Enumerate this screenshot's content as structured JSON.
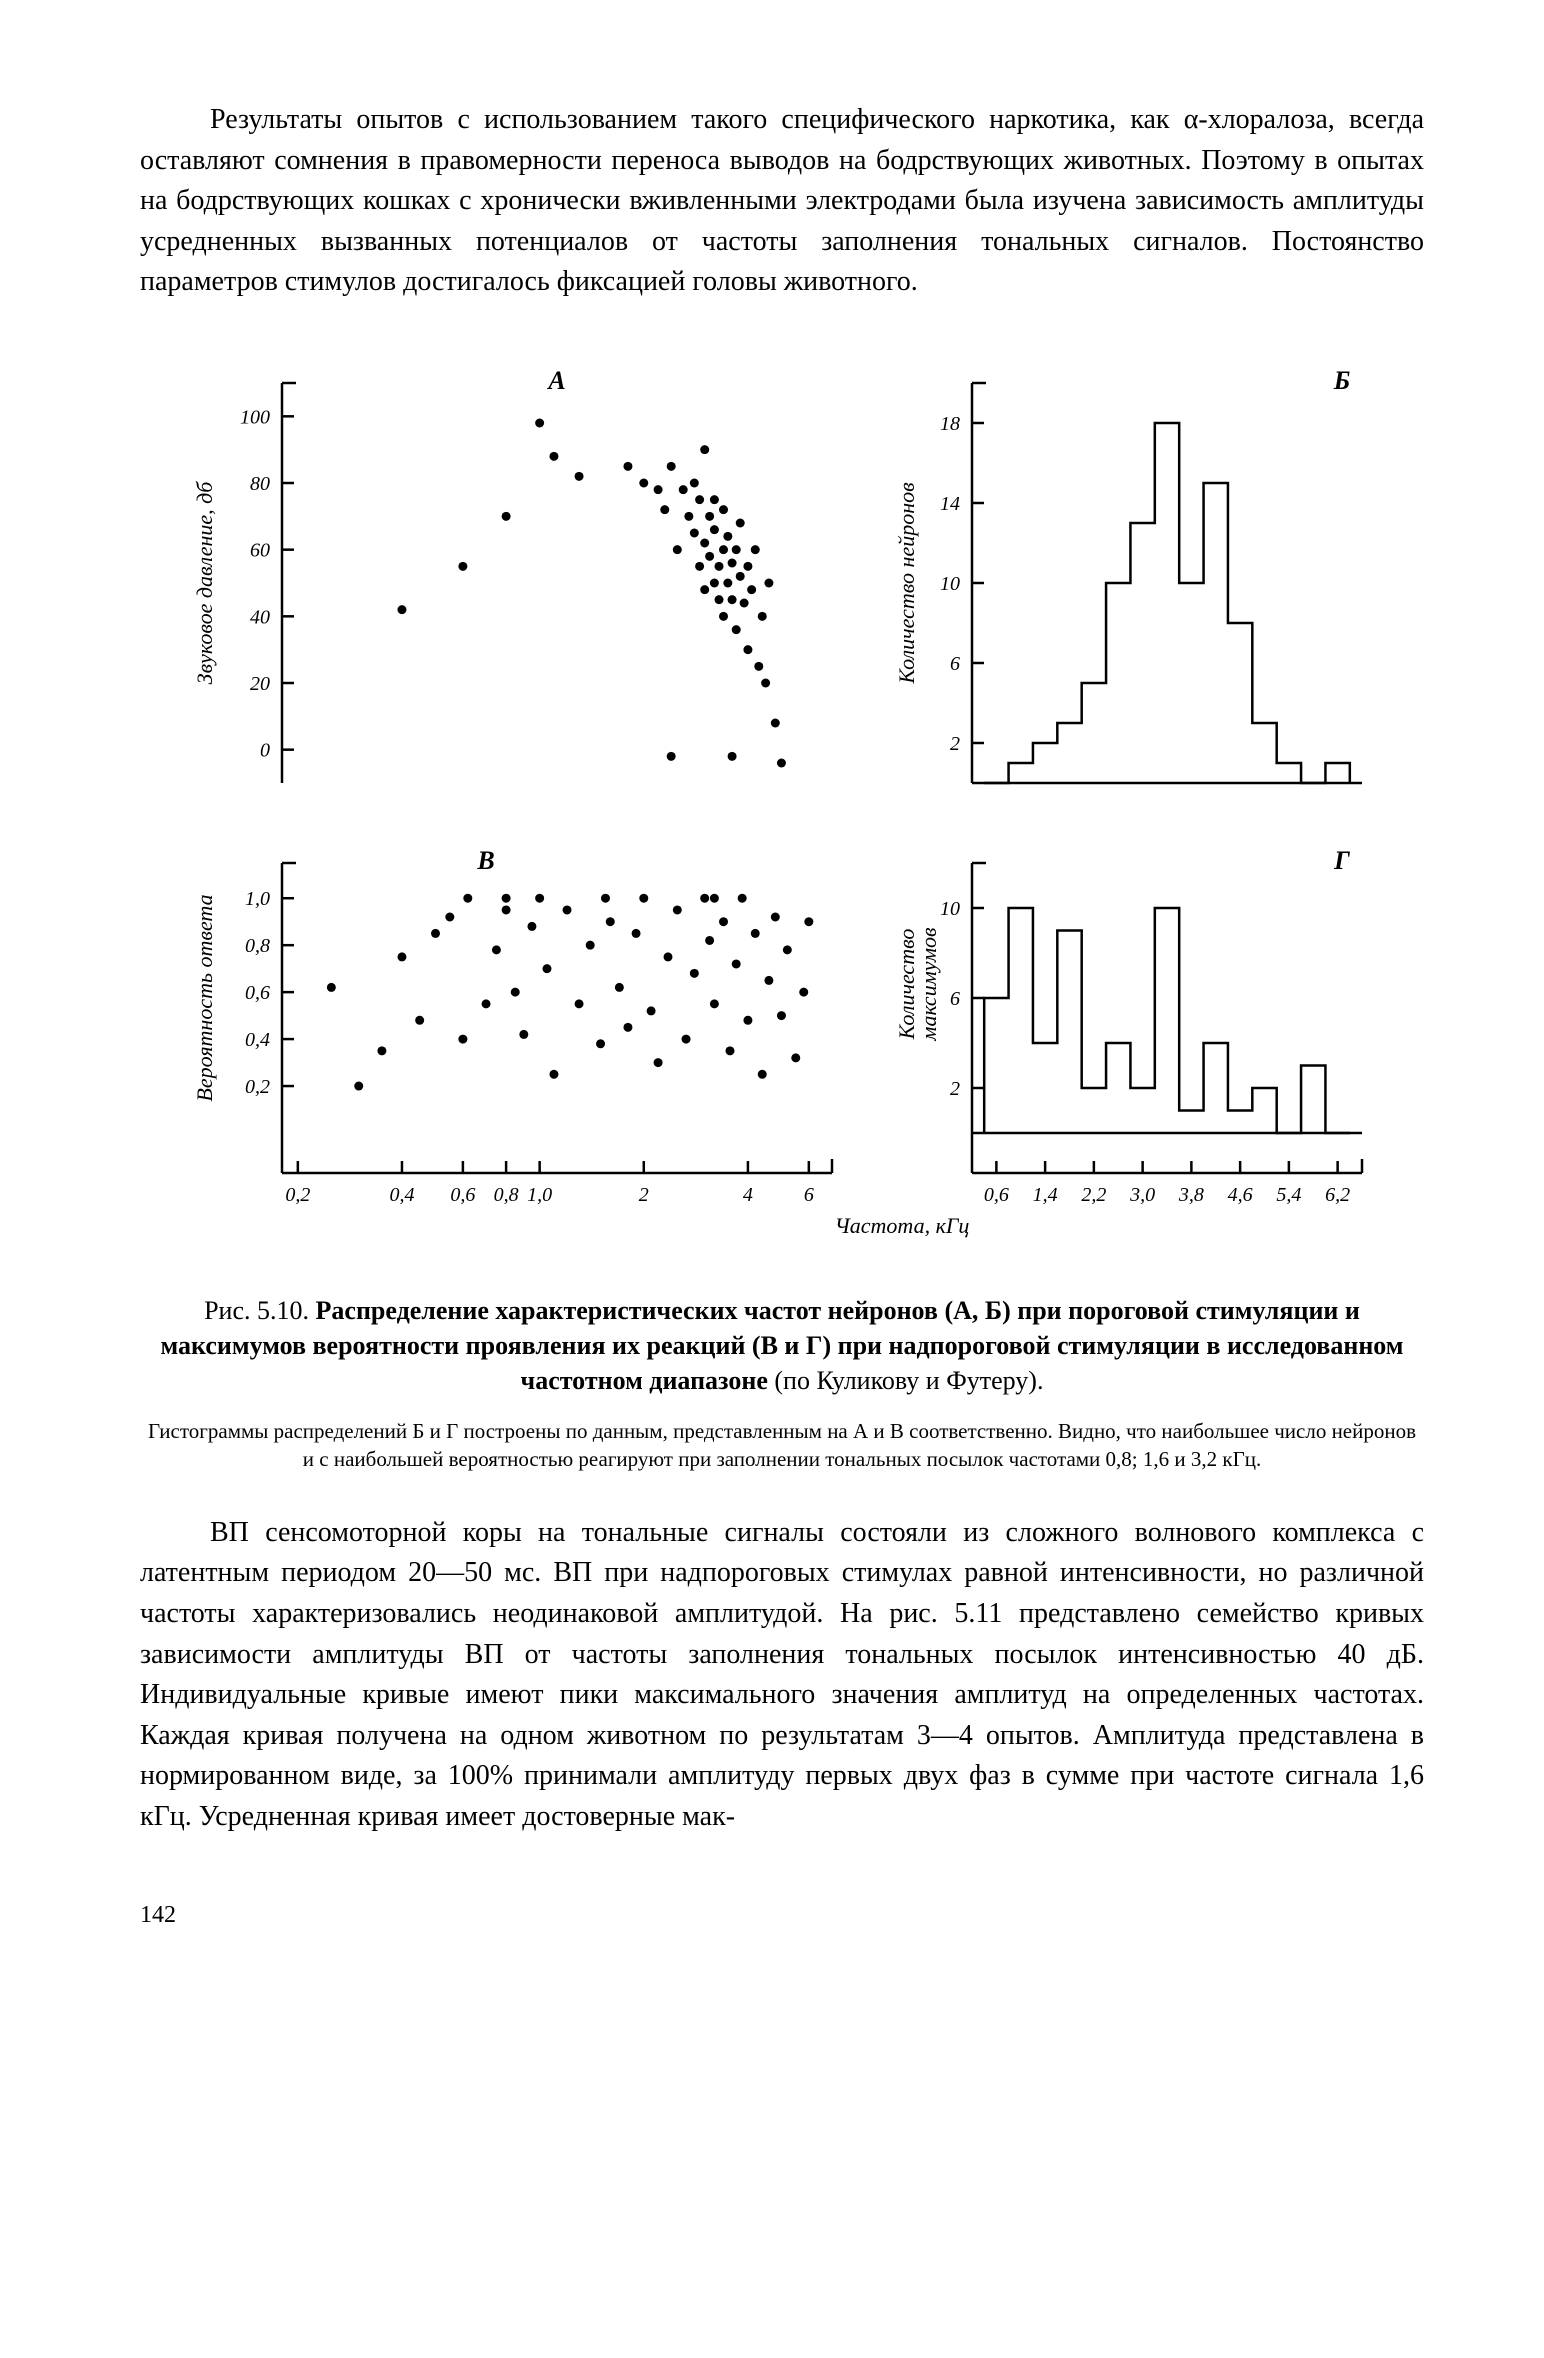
{
  "text": {
    "para1": "Результаты опытов с использованием такого специфического наркотика, как α-хлоралоза, всегда оставляют сомнения в правомерности переноса выводов на бодрствующих животных. Поэтому в опытах на бодрствующих кошках с хронически вживленными электродами была изучена зависимость амплитуды усредненных вызванных потенциалов от частоты заполнения тональных сигналов. Постоянство параметров стимулов достигалось фиксацией головы животного.",
    "caption_lead": "Рис. 5.10. ",
    "caption_bold": "Распределение характеристических частот нейронов (А, Б) при пороговой стимуляции и максимумов вероятности проявления их реакций (В и Г) при надпороговой стимуляции в исследованном частотном диапазоне",
    "caption_tail": " (по Куликову и Футеру).",
    "subcaption": "Гистограммы распределений Б и Г построены по данным, представленным на А и В соответственно. Видно, что наибольшее число нейронов и с наибольшей вероятностью реагируют при заполнении тональных посылок частотами 0,8; 1,6 и 3,2 кГц.",
    "para2": "ВП сенсомоторной коры на тональные сигналы состояли из сложного волнового комплекса с латентным периодом 20—50 мс. ВП при надпороговых стимулах равной интенсивности, но различной частоты характеризовались неодинаковой амплитудой. На рис. 5.11 представлено семейство кривых зависимости амплитуды ВП от частоты заполнения тональных посылок интенсивностью 40 дБ. Индивидуальные кривые имеют пики максимального значения амплитуд на определенных частотах. Каждая кривая получена на одном животном по результатам 3—4 опытов. Амплитуда представлена в нормированном виде, за 100% принимали амплитуду первых двух фаз в сумме при частоте сигнала 1,6 кГц. Усредненная кривая имеет достоверные мак-",
    "pagenum": "142"
  },
  "figure": {
    "colors": {
      "stroke": "#000000",
      "fill": "#ffffff",
      "point": "#000000"
    },
    "stroke_width": 2.5,
    "point_radius": 4.5,
    "x_axis_label": "Частота, кГц",
    "panelA": {
      "label": "А",
      "y_label": "Звуковое давление, дб",
      "y_ticks": [
        0,
        20,
        40,
        60,
        80,
        100
      ],
      "ylim": [
        -10,
        110
      ],
      "x_log_ticks": [
        0.2,
        0.4,
        0.6,
        0.8,
        1.0,
        2,
        4,
        6
      ],
      "x_tick_labels": [
        "0,2",
        "0,4",
        "0,6",
        "0,8",
        "1,0",
        "2",
        "4",
        "6"
      ],
      "xlim_log": [
        0.18,
        7.0
      ],
      "points": [
        [
          1.0,
          98
        ],
        [
          1.1,
          88
        ],
        [
          1.3,
          82
        ],
        [
          1.8,
          85
        ],
        [
          2.0,
          80
        ],
        [
          2.2,
          78
        ],
        [
          2.3,
          72
        ],
        [
          2.4,
          85
        ],
        [
          2.5,
          60
        ],
        [
          2.6,
          78
        ],
        [
          2.7,
          70
        ],
        [
          2.8,
          65
        ],
        [
          2.8,
          80
        ],
        [
          2.9,
          55
        ],
        [
          2.9,
          75
        ],
        [
          3.0,
          62
        ],
        [
          3.0,
          48
        ],
        [
          3.0,
          90
        ],
        [
          3.1,
          70
        ],
        [
          3.1,
          58
        ],
        [
          3.2,
          50
        ],
        [
          3.2,
          66
        ],
        [
          3.2,
          75
        ],
        [
          3.3,
          55
        ],
        [
          3.3,
          45
        ],
        [
          3.4,
          60
        ],
        [
          3.4,
          72
        ],
        [
          3.4,
          40
        ],
        [
          3.5,
          50
        ],
        [
          3.5,
          64
        ],
        [
          3.6,
          56
        ],
        [
          3.6,
          45
        ],
        [
          3.7,
          60
        ],
        [
          3.7,
          36
        ],
        [
          3.8,
          52
        ],
        [
          3.8,
          68
        ],
        [
          3.9,
          44
        ],
        [
          4.0,
          55
        ],
        [
          4.0,
          30
        ],
        [
          4.1,
          48
        ],
        [
          4.2,
          60
        ],
        [
          4.3,
          25
        ],
        [
          4.4,
          40
        ],
        [
          4.5,
          20
        ],
        [
          4.8,
          8
        ],
        [
          5.0,
          -4
        ],
        [
          4.6,
          50
        ],
        [
          0.4,
          42
        ],
        [
          0.6,
          55
        ],
        [
          0.8,
          70
        ],
        [
          2.4,
          -2
        ],
        [
          3.6,
          -2
        ]
      ]
    },
    "panelB": {
      "label": "В",
      "y_label": "Вероятность ответа",
      "y_ticks": [
        0.2,
        0.4,
        0.6,
        0.8,
        1.0
      ],
      "y_tick_labels": [
        "0,2",
        "0,4",
        "0,6",
        "0,8",
        "1,0"
      ],
      "ylim": [
        0,
        1.15
      ],
      "points": [
        [
          0.25,
          0.62
        ],
        [
          0.3,
          0.2
        ],
        [
          0.35,
          0.35
        ],
        [
          0.4,
          0.75
        ],
        [
          0.45,
          0.48
        ],
        [
          0.5,
          0.85
        ],
        [
          0.55,
          0.92
        ],
        [
          0.6,
          0.4
        ],
        [
          0.62,
          1.0
        ],
        [
          0.7,
          0.55
        ],
        [
          0.75,
          0.78
        ],
        [
          0.8,
          0.95
        ],
        [
          0.8,
          1.0
        ],
        [
          0.85,
          0.6
        ],
        [
          0.9,
          0.42
        ],
        [
          0.95,
          0.88
        ],
        [
          1.0,
          1.0
        ],
        [
          1.05,
          0.7
        ],
        [
          1.1,
          0.25
        ],
        [
          1.2,
          0.95
        ],
        [
          1.3,
          0.55
        ],
        [
          1.4,
          0.8
        ],
        [
          1.5,
          0.38
        ],
        [
          1.55,
          1.0
        ],
        [
          1.6,
          0.9
        ],
        [
          1.7,
          0.62
        ],
        [
          1.8,
          0.45
        ],
        [
          1.9,
          0.85
        ],
        [
          2.0,
          1.0
        ],
        [
          2.1,
          0.52
        ],
        [
          2.2,
          0.3
        ],
        [
          2.35,
          0.75
        ],
        [
          2.5,
          0.95
        ],
        [
          2.65,
          0.4
        ],
        [
          2.8,
          0.68
        ],
        [
          3.0,
          1.0
        ],
        [
          3.1,
          0.82
        ],
        [
          3.2,
          0.55
        ],
        [
          3.2,
          1.0
        ],
        [
          3.4,
          0.9
        ],
        [
          3.55,
          0.35
        ],
        [
          3.7,
          0.72
        ],
        [
          3.85,
          1.0
        ],
        [
          4.0,
          0.48
        ],
        [
          4.2,
          0.85
        ],
        [
          4.4,
          0.25
        ],
        [
          4.6,
          0.65
        ],
        [
          4.8,
          0.92
        ],
        [
          5.0,
          0.5
        ],
        [
          5.2,
          0.78
        ],
        [
          5.5,
          0.32
        ],
        [
          5.8,
          0.6
        ],
        [
          6.0,
          0.9
        ]
      ]
    },
    "panelC": {
      "label": "Б",
      "y_label": "Количество нейронов",
      "y_ticks": [
        2,
        6,
        10,
        14,
        18
      ],
      "ylim": [
        0,
        20
      ],
      "x_ticks": [
        0.6,
        1.4,
        2.2,
        3.0,
        3.8,
        4.6,
        5.4,
        6.2
      ],
      "x_tick_labels": [
        "0,6",
        "1,4",
        "2,2",
        "3,0",
        "3,8",
        "4,6",
        "5,4",
        "6,2"
      ],
      "xlim": [
        0.2,
        6.6
      ],
      "bar_width": 0.4,
      "bars": [
        [
          0.6,
          0
        ],
        [
          1.0,
          1
        ],
        [
          1.4,
          2
        ],
        [
          1.8,
          3
        ],
        [
          2.2,
          5
        ],
        [
          2.6,
          10
        ],
        [
          3.0,
          13
        ],
        [
          3.4,
          18
        ],
        [
          3.8,
          10
        ],
        [
          4.2,
          15
        ],
        [
          4.6,
          8
        ],
        [
          5.0,
          3
        ],
        [
          5.4,
          1
        ],
        [
          5.8,
          0
        ],
        [
          6.2,
          1
        ]
      ]
    },
    "panelD": {
      "label": "Г",
      "y_label": "Количество\nмаксимумов",
      "y_ticks": [
        2,
        6,
        10
      ],
      "ylim": [
        0,
        12
      ],
      "bar_width": 0.4,
      "bars": [
        [
          0.6,
          6
        ],
        [
          1.0,
          10
        ],
        [
          1.4,
          4
        ],
        [
          1.8,
          9
        ],
        [
          2.2,
          2
        ],
        [
          2.6,
          4
        ],
        [
          3.0,
          2
        ],
        [
          3.4,
          10
        ],
        [
          3.8,
          1
        ],
        [
          4.2,
          4
        ],
        [
          4.6,
          1
        ],
        [
          5.0,
          2
        ],
        [
          5.4,
          0
        ],
        [
          5.8,
          3
        ],
        [
          6.2,
          0
        ]
      ]
    }
  }
}
